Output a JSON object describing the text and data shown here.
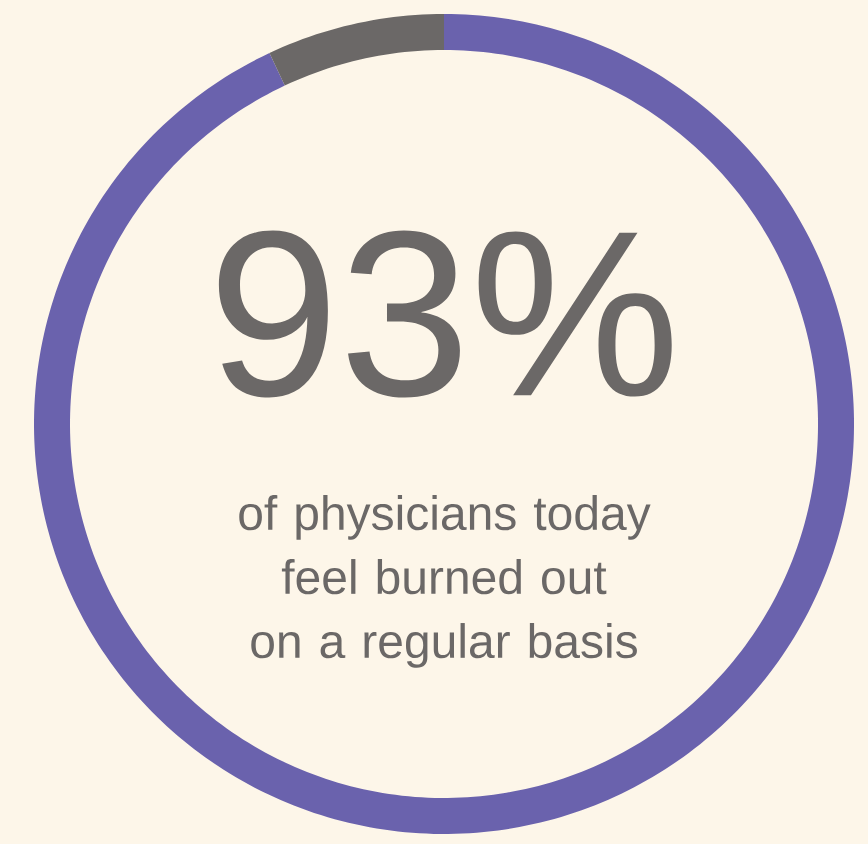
{
  "chart_data": {
    "type": "donut",
    "categories": [
      null,
      null
    ],
    "values": [
      93,
      7
    ],
    "colors": [
      "#6a62ad",
      "#6b6867"
    ],
    "annotations": [
      "93%",
      "of physicians today feel burned out on a regular basis"
    ]
  }
}
